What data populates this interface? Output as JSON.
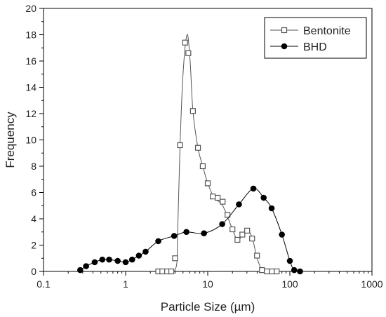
{
  "chart_data": {
    "type": "scatter",
    "title": "",
    "xlabel": "Particle Size (µm)",
    "ylabel": "Frequency",
    "xscale": "log",
    "xlim": [
      0.1,
      1000
    ],
    "ylim": [
      0,
      20
    ],
    "x_ticks": [
      0.1,
      1,
      10,
      100,
      1000
    ],
    "x_tick_labels": [
      "0.1",
      "1",
      "10",
      "100",
      "1000"
    ],
    "y_ticks": [
      0,
      2,
      4,
      6,
      8,
      10,
      12,
      14,
      16,
      18,
      20
    ],
    "y_tick_labels": [
      "0",
      "2",
      "4",
      "6",
      "8",
      "10",
      "12",
      "14",
      "16",
      "18",
      "20"
    ],
    "grid": false,
    "legend_position": "top-right",
    "series": [
      {
        "name": "Bentonite",
        "marker": "open-square",
        "color": "#555555",
        "x": [
          2.5,
          2.8,
          3.2,
          3.6,
          4.0,
          4.6,
          5.3,
          5.8,
          6.6,
          7.6,
          8.7,
          10.0,
          11.5,
          13.2,
          15.2,
          17.4,
          20.0,
          23.0,
          26.4,
          30.2,
          34.7,
          39.8,
          45.7,
          52.5,
          60.3,
          69.2
        ],
        "y": [
          0.0,
          0.0,
          0.0,
          0.0,
          1.0,
          9.6,
          17.4,
          16.6,
          12.2,
          9.4,
          8.0,
          6.7,
          5.7,
          5.6,
          5.3,
          4.3,
          3.2,
          2.4,
          2.8,
          3.1,
          2.5,
          1.2,
          0.1,
          0.0,
          0.0,
          0.0
        ],
        "curve_x": [
          2.5,
          4.0,
          4.3,
          4.6,
          5.0,
          5.6,
          6.1,
          6.6,
          7.6,
          8.7,
          10.0,
          12.0,
          15.2,
          20.0,
          23.0,
          27.0,
          31.0,
          35.0,
          40.0,
          46.0,
          55.0,
          70.0
        ],
        "curve_y": [
          0.0,
          0.1,
          3.0,
          9.6,
          15.0,
          18.0,
          16.0,
          12.2,
          9.4,
          8.0,
          6.7,
          5.6,
          5.0,
          3.2,
          2.4,
          2.8,
          3.1,
          2.5,
          1.0,
          0.1,
          0.0,
          0.0
        ]
      },
      {
        "name": "BHD",
        "marker": "filled-circle",
        "color": "#000000",
        "x": [
          0.28,
          0.33,
          0.42,
          0.52,
          0.63,
          0.8,
          1.0,
          1.2,
          1.45,
          1.75,
          2.5,
          3.9,
          5.5,
          9.0,
          15.0,
          24.0,
          36.0,
          48.0,
          60.0,
          80.0,
          100.0,
          113.0,
          133.0
        ],
        "y": [
          0.1,
          0.4,
          0.7,
          0.9,
          0.9,
          0.8,
          0.7,
          0.9,
          1.2,
          1.5,
          2.3,
          2.7,
          3.0,
          2.9,
          3.6,
          5.1,
          6.3,
          5.6,
          4.8,
          2.8,
          0.8,
          0.1,
          0.0
        ],
        "curve_x": [
          0.28,
          0.33,
          0.42,
          0.52,
          0.63,
          0.8,
          1.0,
          1.2,
          1.45,
          1.75,
          2.5,
          3.9,
          5.5,
          9.0,
          15.0,
          24.0,
          36.0,
          48.0,
          60.0,
          80.0,
          100.0,
          113.0,
          133.0
        ],
        "curve_y": [
          0.1,
          0.4,
          0.7,
          0.9,
          0.9,
          0.8,
          0.7,
          0.9,
          1.2,
          1.5,
          2.3,
          2.7,
          3.0,
          2.9,
          3.6,
          5.1,
          6.3,
          5.6,
          4.8,
          2.8,
          0.8,
          0.1,
          0.0
        ]
      }
    ]
  }
}
